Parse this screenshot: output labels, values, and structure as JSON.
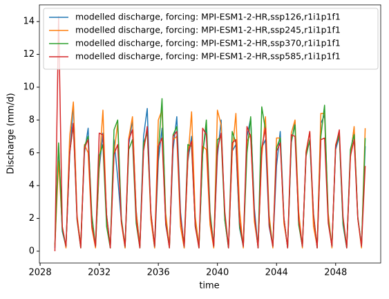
{
  "chart_data": {
    "type": "line",
    "x_label": "time",
    "y_label": "Discharge (mm/d)",
    "x": [
      2029,
      2029.25,
      2029.5,
      2029.75,
      2030,
      2030.25,
      2030.5,
      2030.75,
      2031,
      2031.25,
      2031.5,
      2031.75,
      2032,
      2032.25,
      2032.5,
      2032.75,
      2033,
      2033.25,
      2033.5,
      2033.75,
      2034,
      2034.25,
      2034.5,
      2034.75,
      2035,
      2035.25,
      2035.5,
      2035.75,
      2036,
      2036.25,
      2036.5,
      2036.75,
      2037,
      2037.25,
      2037.5,
      2037.75,
      2038,
      2038.25,
      2038.5,
      2038.75,
      2039,
      2039.25,
      2039.5,
      2039.75,
      2040,
      2040.25,
      2040.5,
      2040.75,
      2041,
      2041.25,
      2041.5,
      2041.75,
      2042,
      2042.25,
      2042.5,
      2042.75,
      2043,
      2043.25,
      2043.5,
      2043.75,
      2044,
      2044.25,
      2044.5,
      2044.75,
      2045,
      2045.25,
      2045.5,
      2045.75,
      2046,
      2046.25,
      2046.5,
      2046.75,
      2047,
      2047.25,
      2047.5,
      2047.75,
      2048,
      2048.25,
      2048.5,
      2048.75,
      2049,
      2049.25,
      2049.5,
      2049.75,
      2050
    ],
    "series": [
      {
        "name": "modelled discharge, forcing: MPI-ESM1-2-HR,ssp126,r1i1p1f1",
        "color": "#1f77b4",
        "values": [
          0.2,
          6.5,
          1.2,
          0.3,
          5.8,
          9.0,
          2.0,
          0.4,
          6.0,
          7.5,
          1.5,
          0.3,
          5.0,
          7.2,
          2.2,
          0.2,
          6.8,
          4.5,
          1.8,
          0.2,
          6.5,
          8.0,
          2.5,
          0.3,
          7.0,
          8.7,
          2.0,
          0.2,
          5.5,
          7.5,
          1.6,
          0.3,
          6.2,
          8.2,
          2.4,
          0.2,
          5.5,
          7.0,
          1.5,
          0.3,
          6.0,
          7.6,
          2.2,
          0.4,
          5.8,
          8.0,
          1.9,
          0.2,
          6.1,
          6.5,
          1.4,
          0.3,
          7.0,
          8.1,
          2.6,
          0.2,
          6.3,
          6.8,
          1.5,
          0.3,
          5.2,
          7.3,
          2.0,
          0.2,
          6.6,
          7.9,
          1.7,
          0.3,
          6.0,
          6.7,
          2.1,
          0.2,
          7.8,
          8.3,
          1.9,
          0.3,
          6.2,
          7.0,
          1.6,
          0.2,
          5.9,
          7.5,
          2.0,
          0.4,
          6.4
        ]
      },
      {
        "name": "modelled discharge, forcing: MPI-ESM1-2-HR,ssp245,r1i1p1f1",
        "color": "#ff7f0e",
        "values": [
          0.3,
          5.5,
          1.5,
          0.2,
          7.0,
          9.1,
          2.2,
          0.3,
          6.5,
          6.0,
          1.4,
          0.2,
          5.2,
          8.6,
          2.0,
          0.3,
          6.0,
          7.8,
          1.7,
          0.2,
          6.9,
          8.2,
          2.4,
          0.3,
          6.2,
          7.4,
          1.9,
          0.2,
          8.0,
          8.6,
          2.3,
          0.3,
          6.8,
          7.0,
          1.5,
          0.2,
          5.6,
          8.5,
          2.1,
          0.3,
          6.4,
          6.2,
          1.6,
          0.2,
          8.6,
          7.7,
          2.0,
          0.3,
          6.0,
          8.4,
          2.5,
          0.2,
          6.7,
          7.1,
          1.8,
          0.3,
          5.8,
          8.2,
          2.2,
          0.2,
          6.9,
          6.9,
          1.7,
          0.3,
          7.2,
          8.0,
          2.4,
          0.2,
          6.1,
          7.3,
          1.5,
          0.3,
          8.4,
          8.4,
          2.3,
          0.2,
          6.5,
          7.2,
          1.9,
          0.3,
          5.7,
          7.6,
          2.0,
          0.2,
          7.5
        ]
      },
      {
        "name": "modelled discharge, forcing: MPI-ESM1-2-HR,ssp370,r1i1p1f1",
        "color": "#2ca02c",
        "values": [
          0.4,
          6.6,
          1.3,
          0.3,
          6.0,
          7.7,
          1.9,
          0.2,
          6.4,
          7.0,
          2.2,
          0.3,
          5.8,
          6.5,
          1.5,
          0.2,
          7.4,
          8.0,
          2.0,
          0.3,
          6.2,
          6.8,
          1.7,
          0.2,
          6.6,
          7.2,
          2.3,
          0.3,
          6.0,
          9.3,
          1.8,
          0.2,
          7.1,
          7.6,
          2.1,
          0.3,
          6.5,
          6.4,
          1.6,
          0.2,
          5.9,
          8.0,
          2.4,
          0.3,
          6.8,
          7.0,
          1.9,
          0.2,
          7.3,
          6.6,
          1.5,
          0.3,
          6.0,
          8.2,
          2.2,
          0.2,
          8.8,
          7.4,
          1.8,
          0.3,
          6.3,
          6.9,
          2.0,
          0.2,
          6.7,
          7.7,
          1.6,
          0.3,
          5.8,
          6.8,
          2.3,
          0.2,
          7.0,
          8.9,
          1.9,
          0.3,
          6.4,
          7.1,
          1.7,
          0.2,
          6.2,
          7.1,
          2.1,
          0.3,
          6.9
        ]
      },
      {
        "name": "modelled discharge, forcing: MPI-ESM1-2-HR,ssp585,r1i1p1f1",
        "color": "#d62728",
        "values": [
          0.0,
          14.3,
          1.5,
          0.3,
          6.0,
          7.8,
          2.0,
          0.2,
          6.3,
          6.8,
          1.6,
          0.3,
          7.2,
          7.1,
          2.2,
          0.2,
          5.9,
          6.5,
          1.8,
          0.3,
          6.8,
          7.4,
          2.0,
          0.2,
          6.1,
          7.6,
          2.3,
          0.3,
          6.4,
          6.9,
          1.7,
          0.2,
          7.0,
          7.3,
          2.1,
          0.3,
          6.0,
          6.7,
          1.5,
          0.2,
          7.5,
          7.1,
          2.0,
          0.3,
          6.2,
          7.2,
          2.4,
          0.2,
          6.6,
          6.8,
          1.8,
          0.3,
          7.6,
          7.0,
          2.2,
          0.2,
          6.3,
          7.5,
          1.6,
          0.3,
          6.1,
          6.6,
          2.0,
          0.2,
          7.1,
          7.0,
          1.9,
          0.3,
          6.0,
          7.3,
          2.2,
          0.2,
          6.8,
          6.9,
          1.7,
          0.3,
          6.4,
          7.4,
          2.1,
          0.2,
          5.8,
          6.8,
          2.0,
          0.3,
          5.2
        ]
      }
    ],
    "xlim": [
      2027.95,
      2051.05
    ],
    "xticks": [
      2028,
      2032,
      2036,
      2040,
      2044,
      2048
    ],
    "ylim": [
      -0.72,
      15.02
    ],
    "yticks": [
      0,
      2,
      4,
      6,
      8,
      10,
      12,
      14
    ],
    "grid": false,
    "legend": "upper right"
  }
}
